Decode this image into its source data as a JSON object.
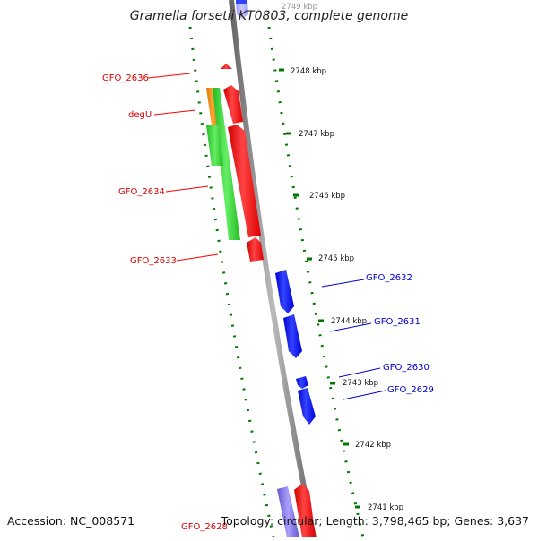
{
  "title": "Gramella forsetii KT0803, complete genome",
  "footer": {
    "accession": "Accession: NC_008571",
    "summary": "Topology: circular; Length: 3,798,465 bp; Genes: 3,637"
  },
  "colors": {
    "forward_gene": "#ff0000",
    "reverse_gene": "#0000ff",
    "green_feature": "#33cc33",
    "orange_feature": "#ff8c00",
    "scale_tick": "#007700",
    "backbone": "#888888"
  },
  "scale_labels": [
    "2749 kbp",
    "2748 kbp",
    "2747 kbp",
    "2746 kbp",
    "2745 kbp",
    "2744 kbp",
    "2743 kbp",
    "2742 kbp",
    "2741 kbp"
  ],
  "gene_labels": {
    "forward": [
      "GFO_2636",
      "degU",
      "GFO_2634",
      "GFO_2633",
      "GFO_2628"
    ],
    "reverse": [
      "GFO_2632",
      "GFO_2631",
      "GFO_2630",
      "GFO_2629"
    ]
  }
}
